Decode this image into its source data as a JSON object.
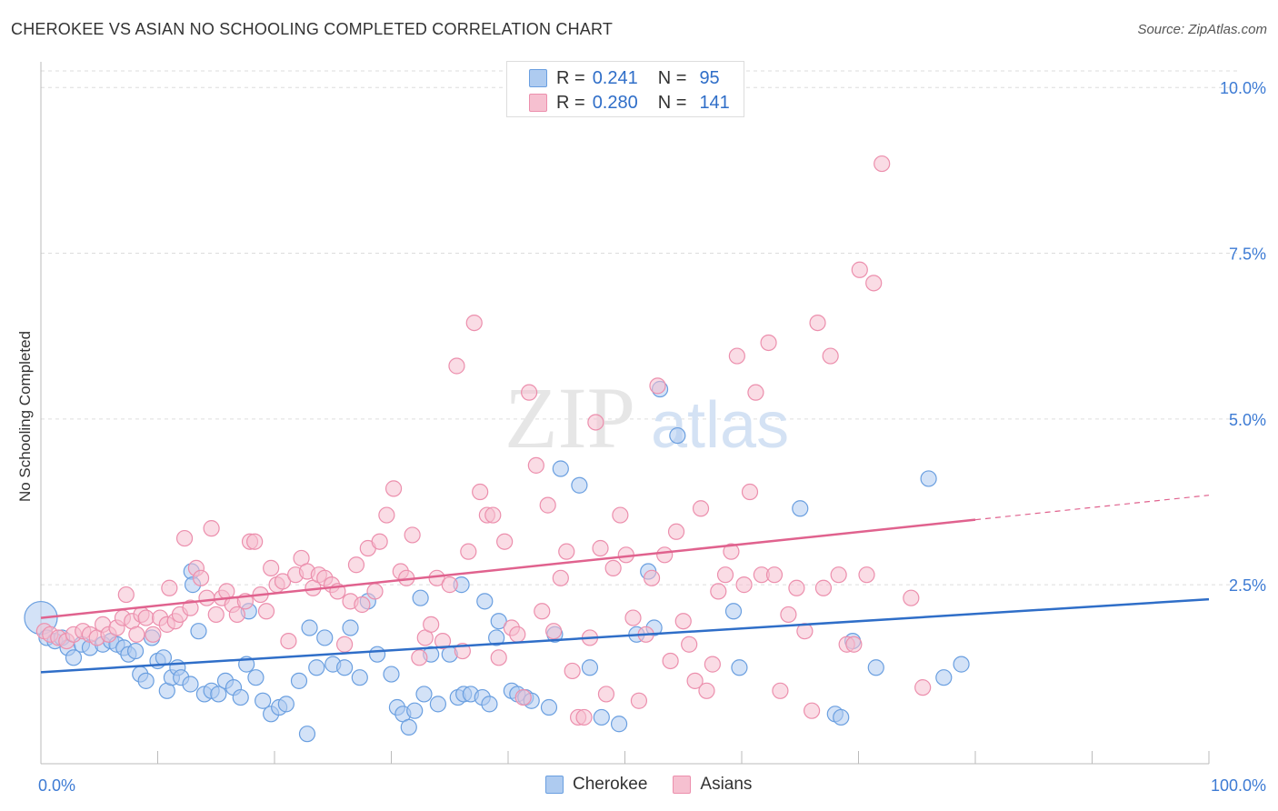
{
  "title": "CHEROKEE VS ASIAN NO SCHOOLING COMPLETED CORRELATION CHART",
  "source": "Source: ZipAtlas.com",
  "watermark": {
    "zip": "ZIP",
    "atlas": "atlas"
  },
  "legend_top": [
    {
      "r_label": "R =",
      "r_value": "0.241",
      "n_label": "N =",
      "n_value": "95"
    },
    {
      "r_label": "R =",
      "r_value": "0.280",
      "n_label": "N =",
      "n_value": "141"
    }
  ],
  "legend_bottom": [
    "Cherokee",
    "Asians"
  ],
  "colors": {
    "cherokee_fill": "#aecbf0",
    "cherokee_stroke": "#6a9fe0",
    "cherokee_line": "#2f6ec8",
    "asians_fill": "#f6c0d0",
    "asians_stroke": "#ec8fad",
    "asians_line": "#e0628e",
    "tick_text": "#3d7bd4",
    "grid": "#dddddd"
  },
  "chart_data": {
    "type": "scatter",
    "title": "CHEROKEE VS ASIAN NO SCHOOLING COMPLETED CORRELATION CHART",
    "xlabel": "",
    "ylabel": "No Schooling Completed",
    "xlim": [
      0,
      100
    ],
    "ylim": [
      -0.2,
      10.25
    ],
    "x_tick_labels": [
      "0.0%",
      "100.0%"
    ],
    "y_ticks": [
      2.5,
      5.0,
      7.5,
      10.0
    ],
    "y_tick_labels": [
      "2.5%",
      "5.0%",
      "7.5%",
      "10.0%"
    ],
    "grid": "horizontal dashed",
    "legend": "top-center",
    "series": [
      {
        "name": "Cherokee",
        "R": 0.241,
        "N": 95,
        "trend": {
          "x": [
            0,
            100
          ],
          "y": [
            1.18,
            2.28
          ],
          "solid_to": 100
        },
        "points": [
          [
            0,
            2.0,
            "big"
          ],
          [
            0.5,
            1.7
          ],
          [
            1.2,
            1.65
          ],
          [
            1.8,
            1.7
          ],
          [
            2.3,
            1.55
          ],
          [
            2.8,
            1.4
          ],
          [
            3.5,
            1.6
          ],
          [
            4.2,
            1.55
          ],
          [
            5.3,
            1.6
          ],
          [
            6.0,
            1.65
          ],
          [
            6.5,
            1.6
          ],
          [
            7.1,
            1.55
          ],
          [
            7.5,
            1.45
          ],
          [
            8.1,
            1.5
          ],
          [
            8.5,
            1.15
          ],
          [
            9.0,
            1.05
          ],
          [
            9.5,
            1.7
          ],
          [
            10.0,
            1.35
          ],
          [
            10.5,
            1.4
          ],
          [
            10.8,
            0.9
          ],
          [
            11.2,
            1.1
          ],
          [
            11.7,
            1.25
          ],
          [
            12.0,
            1.1
          ],
          [
            12.8,
            1.0
          ],
          [
            13.5,
            1.8
          ],
          [
            14.0,
            0.85
          ],
          [
            14.6,
            0.9
          ],
          [
            15.2,
            0.85
          ],
          [
            15.8,
            1.05
          ],
          [
            16.5,
            0.95
          ],
          [
            17.1,
            0.8
          ],
          [
            17.6,
            1.3
          ],
          [
            18.4,
            1.1
          ],
          [
            19.0,
            0.75
          ],
          [
            19.7,
            0.55
          ],
          [
            20.4,
            0.65
          ],
          [
            21.0,
            0.7
          ],
          [
            22.1,
            1.05
          ],
          [
            22.8,
            0.25
          ],
          [
            23.6,
            1.25
          ],
          [
            24.3,
            1.7
          ],
          [
            25.0,
            1.3
          ],
          [
            26.0,
            1.25
          ],
          [
            26.5,
            1.85
          ],
          [
            27.3,
            1.1
          ],
          [
            28.0,
            2.25
          ],
          [
            28.8,
            1.45
          ],
          [
            30.0,
            1.15
          ],
          [
            30.5,
            0.65
          ],
          [
            31.0,
            0.55
          ],
          [
            31.5,
            0.35
          ],
          [
            32.0,
            0.6
          ],
          [
            32.8,
            0.85
          ],
          [
            33.4,
            1.45
          ],
          [
            34.0,
            0.7
          ],
          [
            35.0,
            1.45
          ],
          [
            35.7,
            0.8
          ],
          [
            36.2,
            0.85
          ],
          [
            36.8,
            0.85
          ],
          [
            37.8,
            0.8
          ],
          [
            38.4,
            0.7
          ],
          [
            39.0,
            1.7
          ],
          [
            40.3,
            0.9
          ],
          [
            40.8,
            0.85
          ],
          [
            41.5,
            0.8
          ],
          [
            42.0,
            0.75
          ],
          [
            43.5,
            0.65
          ],
          [
            44.0,
            1.75
          ],
          [
            44.5,
            4.25
          ],
          [
            46.1,
            4.0
          ],
          [
            47.0,
            1.25
          ],
          [
            48.0,
            0.5
          ],
          [
            49.5,
            0.4
          ],
          [
            51.0,
            1.75
          ],
          [
            52.0,
            2.7
          ],
          [
            52.5,
            1.85
          ],
          [
            53.0,
            5.45
          ],
          [
            54.5,
            4.75
          ],
          [
            59.3,
            2.1
          ],
          [
            59.8,
            1.25
          ],
          [
            65.0,
            3.65
          ],
          [
            68.0,
            0.55
          ],
          [
            68.5,
            0.5
          ],
          [
            69.5,
            1.65
          ],
          [
            71.5,
            1.25
          ],
          [
            76.0,
            4.1
          ],
          [
            77.3,
            1.1
          ],
          [
            78.8,
            1.3
          ],
          [
            12.9,
            2.7
          ],
          [
            13.0,
            2.5
          ],
          [
            17.8,
            2.1
          ],
          [
            23.0,
            1.85
          ],
          [
            32.5,
            2.3
          ],
          [
            36.0,
            2.5
          ],
          [
            38.0,
            2.25
          ],
          [
            39.2,
            1.95
          ]
        ]
      },
      {
        "name": "Asians",
        "R": 0.28,
        "N": 141,
        "trend": {
          "x": [
            0,
            100
          ],
          "y": [
            2.0,
            3.85
          ],
          "solid_to": 80
        },
        "points": [
          [
            0.3,
            1.8
          ],
          [
            0.8,
            1.75
          ],
          [
            1.5,
            1.7
          ],
          [
            2.2,
            1.65
          ],
          [
            2.8,
            1.75
          ],
          [
            3.6,
            1.8
          ],
          [
            4.2,
            1.75
          ],
          [
            4.8,
            1.7
          ],
          [
            5.3,
            1.9
          ],
          [
            5.8,
            1.75
          ],
          [
            6.5,
            1.85
          ],
          [
            7.0,
            2.0
          ],
          [
            7.3,
            2.35
          ],
          [
            7.8,
            1.95
          ],
          [
            8.2,
            1.75
          ],
          [
            8.6,
            2.05
          ],
          [
            9.0,
            2.0
          ],
          [
            9.6,
            1.75
          ],
          [
            10.2,
            2.0
          ],
          [
            10.8,
            1.9
          ],
          [
            11.0,
            2.45
          ],
          [
            11.5,
            1.95
          ],
          [
            11.9,
            2.05
          ],
          [
            12.3,
            3.2
          ],
          [
            12.8,
            2.15
          ],
          [
            13.3,
            2.75
          ],
          [
            13.7,
            2.6
          ],
          [
            14.2,
            2.3
          ],
          [
            14.6,
            3.35
          ],
          [
            15.0,
            2.05
          ],
          [
            15.5,
            2.3
          ],
          [
            15.9,
            2.4
          ],
          [
            16.4,
            2.2
          ],
          [
            16.8,
            2.05
          ],
          [
            17.5,
            2.25
          ],
          [
            17.9,
            3.15
          ],
          [
            18.3,
            3.15
          ],
          [
            18.8,
            2.35
          ],
          [
            19.3,
            2.1
          ],
          [
            19.7,
            2.75
          ],
          [
            20.2,
            2.5
          ],
          [
            20.7,
            2.55
          ],
          [
            21.2,
            1.65
          ],
          [
            21.8,
            2.65
          ],
          [
            22.3,
            2.9
          ],
          [
            22.8,
            2.7
          ],
          [
            23.3,
            2.45
          ],
          [
            23.8,
            2.65
          ],
          [
            24.3,
            2.6
          ],
          [
            24.9,
            2.5
          ],
          [
            25.4,
            2.4
          ],
          [
            26.0,
            1.6
          ],
          [
            26.5,
            2.25
          ],
          [
            27.0,
            2.8
          ],
          [
            27.5,
            2.2
          ],
          [
            28.0,
            3.05
          ],
          [
            28.6,
            2.4
          ],
          [
            29.0,
            3.15
          ],
          [
            29.6,
            3.55
          ],
          [
            30.2,
            3.95
          ],
          [
            30.8,
            2.7
          ],
          [
            31.3,
            2.6
          ],
          [
            31.8,
            3.25
          ],
          [
            32.4,
            1.4
          ],
          [
            32.9,
            1.7
          ],
          [
            33.4,
            1.9
          ],
          [
            33.9,
            2.6
          ],
          [
            34.4,
            1.65
          ],
          [
            35.0,
            2.5
          ],
          [
            35.6,
            5.8
          ],
          [
            36.1,
            1.5
          ],
          [
            36.6,
            3.0
          ],
          [
            37.1,
            6.45
          ],
          [
            37.6,
            3.9
          ],
          [
            38.2,
            3.55
          ],
          [
            38.7,
            3.55
          ],
          [
            39.2,
            1.4
          ],
          [
            39.7,
            3.15
          ],
          [
            40.3,
            1.85
          ],
          [
            40.8,
            1.75
          ],
          [
            41.3,
            0.8
          ],
          [
            41.8,
            5.4
          ],
          [
            42.4,
            4.3
          ],
          [
            42.9,
            2.1
          ],
          [
            43.4,
            3.7
          ],
          [
            43.9,
            1.8
          ],
          [
            44.5,
            2.6
          ],
          [
            45.0,
            3.0
          ],
          [
            45.5,
            1.2
          ],
          [
            46.0,
            0.5
          ],
          [
            46.5,
            0.5
          ],
          [
            47.0,
            1.7
          ],
          [
            47.5,
            4.95
          ],
          [
            47.9,
            3.05
          ],
          [
            48.4,
            0.85
          ],
          [
            49.0,
            2.75
          ],
          [
            49.6,
            3.55
          ],
          [
            50.1,
            2.95
          ],
          [
            50.7,
            2.0
          ],
          [
            51.2,
            0.75
          ],
          [
            51.8,
            1.75
          ],
          [
            52.3,
            2.6
          ],
          [
            52.8,
            5.5
          ],
          [
            53.4,
            2.95
          ],
          [
            53.9,
            1.35
          ],
          [
            54.4,
            3.3
          ],
          [
            55.0,
            1.95
          ],
          [
            55.5,
            1.6
          ],
          [
            56.0,
            1.05
          ],
          [
            56.5,
            3.65
          ],
          [
            57.0,
            0.9
          ],
          [
            57.5,
            1.3
          ],
          [
            58.0,
            2.4
          ],
          [
            58.6,
            2.65
          ],
          [
            59.1,
            3.0
          ],
          [
            59.6,
            5.95
          ],
          [
            60.2,
            2.5
          ],
          [
            60.7,
            3.9
          ],
          [
            61.2,
            5.4
          ],
          [
            61.7,
            2.65
          ],
          [
            62.3,
            6.15
          ],
          [
            62.8,
            2.65
          ],
          [
            63.3,
            0.9
          ],
          [
            64.0,
            2.05
          ],
          [
            64.7,
            2.45
          ],
          [
            65.4,
            1.8
          ],
          [
            66.0,
            0.6
          ],
          [
            66.5,
            6.45
          ],
          [
            67.0,
            2.45
          ],
          [
            67.6,
            5.95
          ],
          [
            68.3,
            2.65
          ],
          [
            69.0,
            1.6
          ],
          [
            69.6,
            1.6
          ],
          [
            70.1,
            7.25
          ],
          [
            70.7,
            2.65
          ],
          [
            71.3,
            7.05
          ],
          [
            72.0,
            8.85
          ],
          [
            74.5,
            2.3
          ],
          [
            75.5,
            0.95
          ]
        ]
      }
    ]
  }
}
